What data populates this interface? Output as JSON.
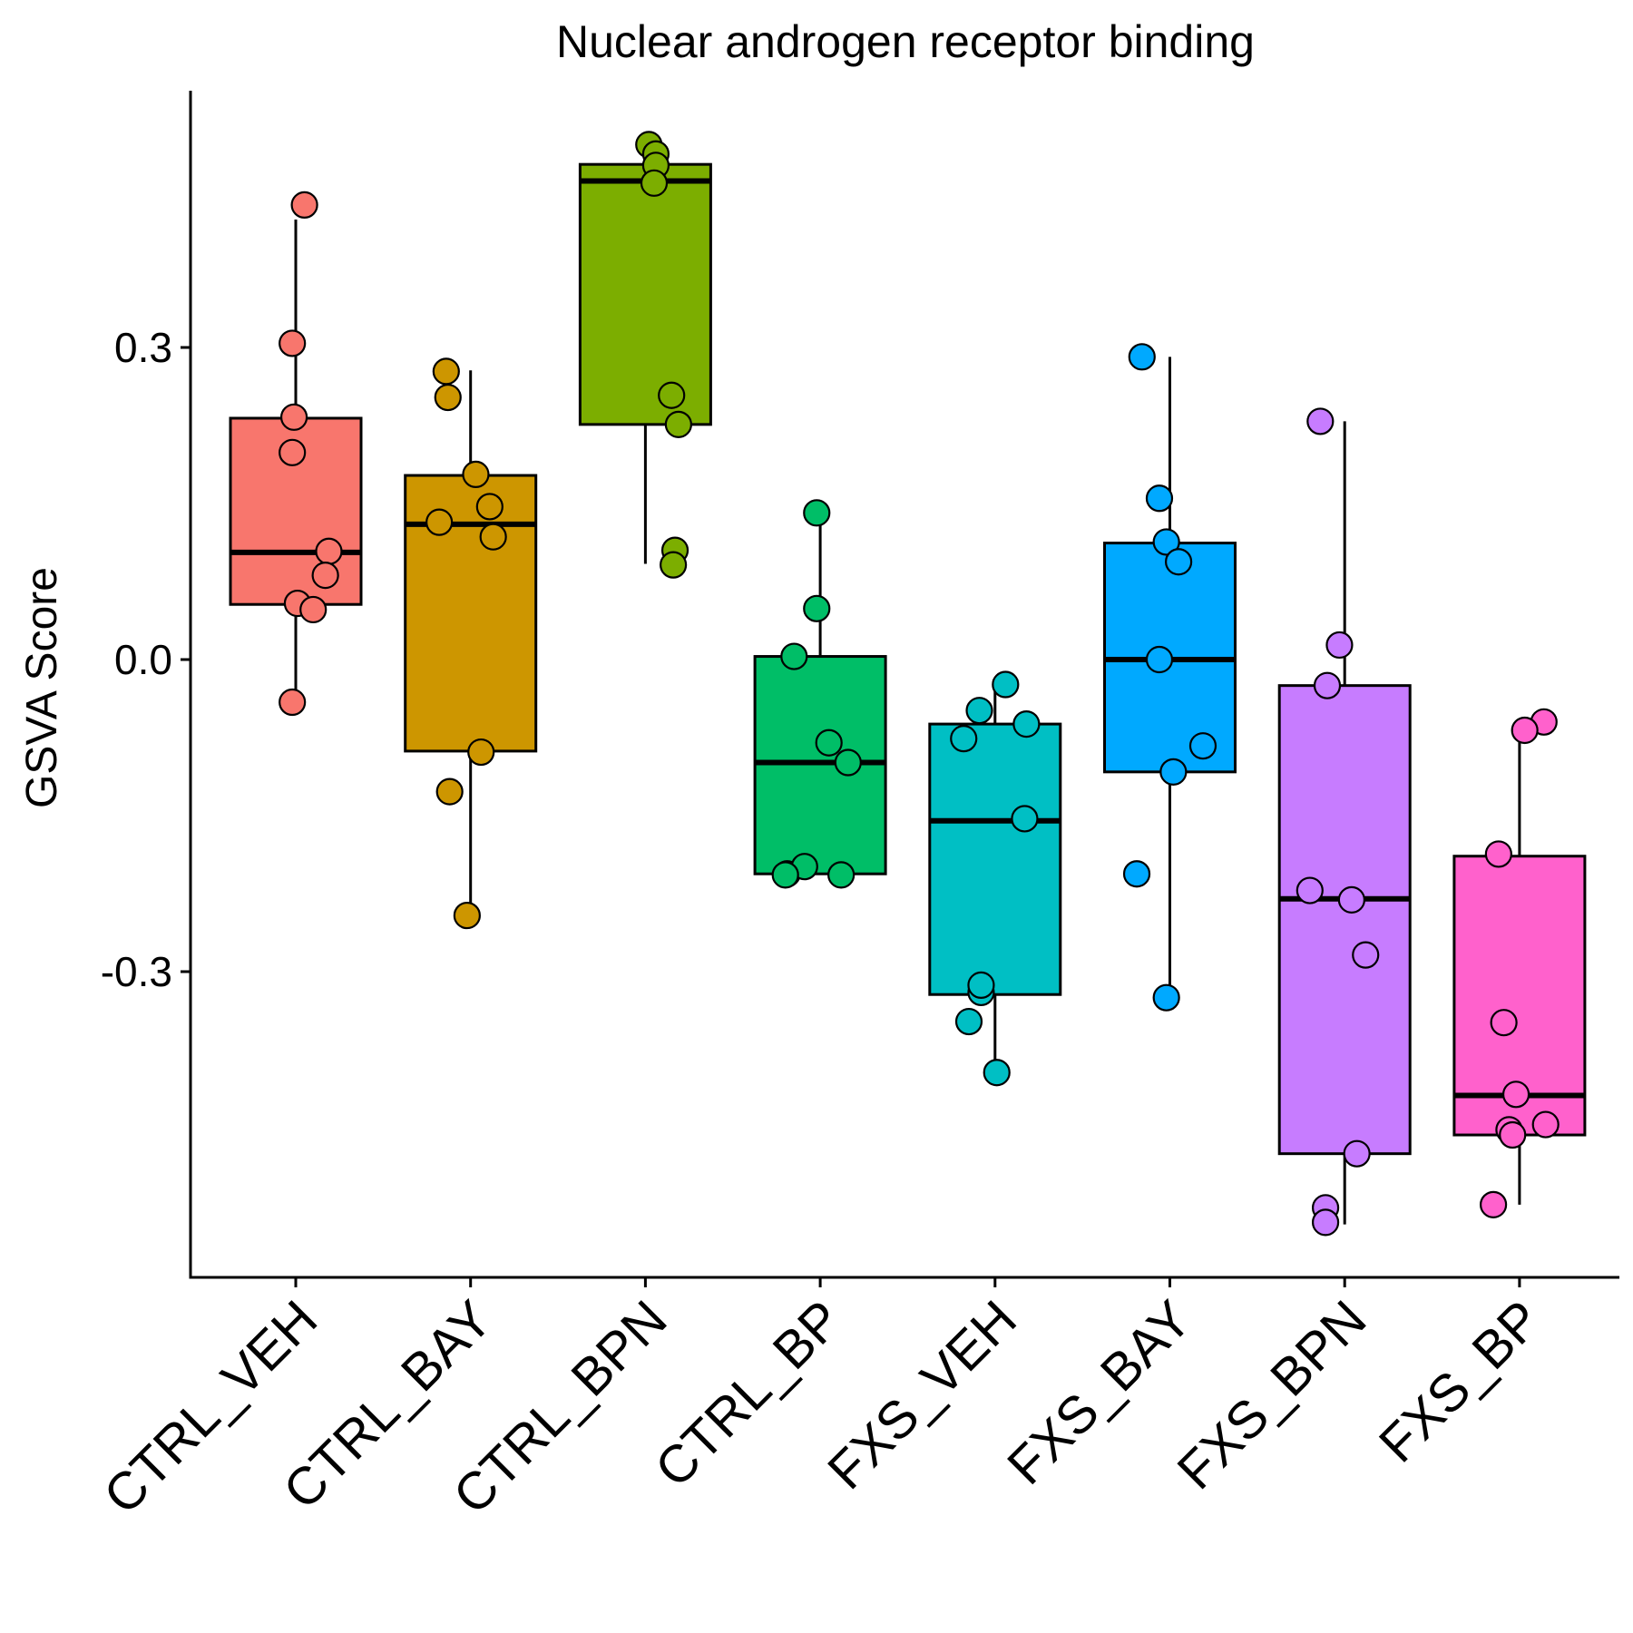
{
  "chart_data": {
    "type": "box",
    "title": "Nuclear androgen receptor binding",
    "ylabel": "GSVA Score",
    "xlabel": "",
    "ylim": [
      -0.595,
      0.545
    ],
    "yticks": [
      {
        "value": 0.3,
        "label": "0.3"
      },
      {
        "value": 0.0,
        "label": "0.0"
      },
      {
        "value": -0.3,
        "label": "-0.3"
      }
    ],
    "grid": false,
    "legend": "none",
    "categories": [
      "CTRL_VEH",
      "CTRL_BAY",
      "CTRL_BPN",
      "CTRL_BP",
      "FXS_VEH",
      "FXS_BAY",
      "FXS_BPN",
      "FXS_BP"
    ],
    "groups": [
      {
        "category": "CTRL_VEH",
        "color": "#F8766D",
        "box": {
          "whisker_low": -0.04,
          "q1": 0.053,
          "median": 0.103,
          "q3": 0.232,
          "whisker_high": 0.423
        },
        "points": [
          {
            "j": 0.05,
            "y": 0.437
          },
          {
            "j": -0.02,
            "y": 0.304
          },
          {
            "j": -0.01,
            "y": 0.233
          },
          {
            "j": -0.02,
            "y": 0.199
          },
          {
            "j": 0.19,
            "y": 0.104
          },
          {
            "j": 0.17,
            "y": 0.081
          },
          {
            "j": 0.01,
            "y": 0.054
          },
          {
            "j": 0.1,
            "y": 0.048
          },
          {
            "j": -0.02,
            "y": -0.041
          }
        ]
      },
      {
        "category": "CTRL_BAY",
        "color": "#CD9600",
        "box": {
          "whisker_low": -0.246,
          "q1": -0.088,
          "median": 0.13,
          "q3": 0.177,
          "whisker_high": 0.278
        },
        "points": [
          {
            "j": -0.14,
            "y": 0.277
          },
          {
            "j": -0.13,
            "y": 0.252
          },
          {
            "j": 0.03,
            "y": 0.178
          },
          {
            "j": 0.11,
            "y": 0.147
          },
          {
            "j": -0.18,
            "y": 0.132
          },
          {
            "j": 0.13,
            "y": 0.118
          },
          {
            "j": 0.06,
            "y": -0.089
          },
          {
            "j": -0.12,
            "y": -0.127
          },
          {
            "j": -0.02,
            "y": -0.246
          }
        ]
      },
      {
        "category": "CTRL_BPN",
        "color": "#7CAE00",
        "box": {
          "whisker_low": 0.092,
          "q1": 0.226,
          "median": 0.46,
          "q3": 0.476,
          "whisker_high": 0.476
        },
        "points": [
          {
            "j": 0.02,
            "y": 0.495
          },
          {
            "j": 0.06,
            "y": 0.486
          },
          {
            "j": 0.06,
            "y": 0.475
          },
          {
            "j": 0.05,
            "y": 0.458
          },
          {
            "j": 0.15,
            "y": 0.254
          },
          {
            "j": 0.19,
            "y": 0.226
          },
          {
            "j": 0.17,
            "y": 0.105
          },
          {
            "j": 0.16,
            "y": 0.091
          }
        ]
      },
      {
        "category": "CTRL_BP",
        "color": "#00BE67",
        "box": {
          "whisker_low": -0.206,
          "q1": -0.206,
          "median": -0.099,
          "q3": 0.003,
          "whisker_high": 0.141
        },
        "points": [
          {
            "j": -0.02,
            "y": 0.141
          },
          {
            "j": -0.02,
            "y": 0.049
          },
          {
            "j": -0.15,
            "y": 0.003
          },
          {
            "j": 0.05,
            "y": -0.08
          },
          {
            "j": 0.16,
            "y": -0.099
          },
          {
            "j": -0.19,
            "y": -0.206
          },
          {
            "j": -0.09,
            "y": -0.199
          },
          {
            "j": 0.12,
            "y": -0.207
          },
          {
            "j": -0.2,
            "y": -0.207
          }
        ]
      },
      {
        "category": "FXS_VEH",
        "color": "#00BFC4",
        "box": {
          "whisker_low": -0.397,
          "q1": -0.322,
          "median": -0.155,
          "q3": -0.062,
          "whisker_high": -0.024
        },
        "points": [
          {
            "j": 0.06,
            "y": -0.024
          },
          {
            "j": -0.09,
            "y": -0.049
          },
          {
            "j": 0.18,
            "y": -0.062
          },
          {
            "j": -0.18,
            "y": -0.076
          },
          {
            "j": 0.17,
            "y": -0.153
          },
          {
            "j": -0.08,
            "y": -0.32
          },
          {
            "j": -0.08,
            "y": -0.313
          },
          {
            "j": -0.15,
            "y": -0.348
          },
          {
            "j": 0.01,
            "y": -0.397
          }
        ]
      },
      {
        "category": "FXS_BAY",
        "color": "#00A9FF",
        "box": {
          "whisker_low": -0.326,
          "q1": -0.108,
          "median": 0.0,
          "q3": 0.112,
          "whisker_high": 0.291
        },
        "points": [
          {
            "j": -0.16,
            "y": 0.291
          },
          {
            "j": -0.06,
            "y": 0.155
          },
          {
            "j": -0.02,
            "y": 0.113
          },
          {
            "j": 0.05,
            "y": 0.094
          },
          {
            "j": -0.06,
            "y": 0.0
          },
          {
            "j": 0.19,
            "y": -0.083
          },
          {
            "j": 0.02,
            "y": -0.108
          },
          {
            "j": -0.19,
            "y": -0.206
          },
          {
            "j": -0.02,
            "y": -0.325
          }
        ]
      },
      {
        "category": "FXS_BPN",
        "color": "#C77CFF",
        "box": {
          "whisker_low": -0.543,
          "q1": -0.475,
          "median": -0.23,
          "q3": -0.025,
          "whisker_high": 0.229
        },
        "points": [
          {
            "j": -0.14,
            "y": 0.229
          },
          {
            "j": -0.03,
            "y": 0.014
          },
          {
            "j": -0.1,
            "y": -0.025
          },
          {
            "j": -0.2,
            "y": -0.222
          },
          {
            "j": 0.04,
            "y": -0.231
          },
          {
            "j": 0.12,
            "y": -0.284
          },
          {
            "j": 0.07,
            "y": -0.475
          },
          {
            "j": -0.11,
            "y": -0.527
          },
          {
            "j": -0.11,
            "y": -0.541
          }
        ]
      },
      {
        "category": "FXS_BP",
        "color": "#FF61CC",
        "box": {
          "whisker_low": -0.524,
          "q1": -0.457,
          "median": -0.419,
          "q3": -0.189,
          "whisker_high": -0.062
        },
        "points": [
          {
            "j": 0.14,
            "y": -0.06
          },
          {
            "j": 0.03,
            "y": -0.068
          },
          {
            "j": -0.12,
            "y": -0.187
          },
          {
            "j": -0.09,
            "y": -0.349
          },
          {
            "j": -0.02,
            "y": -0.418
          },
          {
            "j": 0.15,
            "y": -0.447
          },
          {
            "j": -0.06,
            "y": -0.452
          },
          {
            "j": -0.04,
            "y": -0.457
          },
          {
            "j": -0.15,
            "y": -0.524
          }
        ]
      }
    ]
  }
}
